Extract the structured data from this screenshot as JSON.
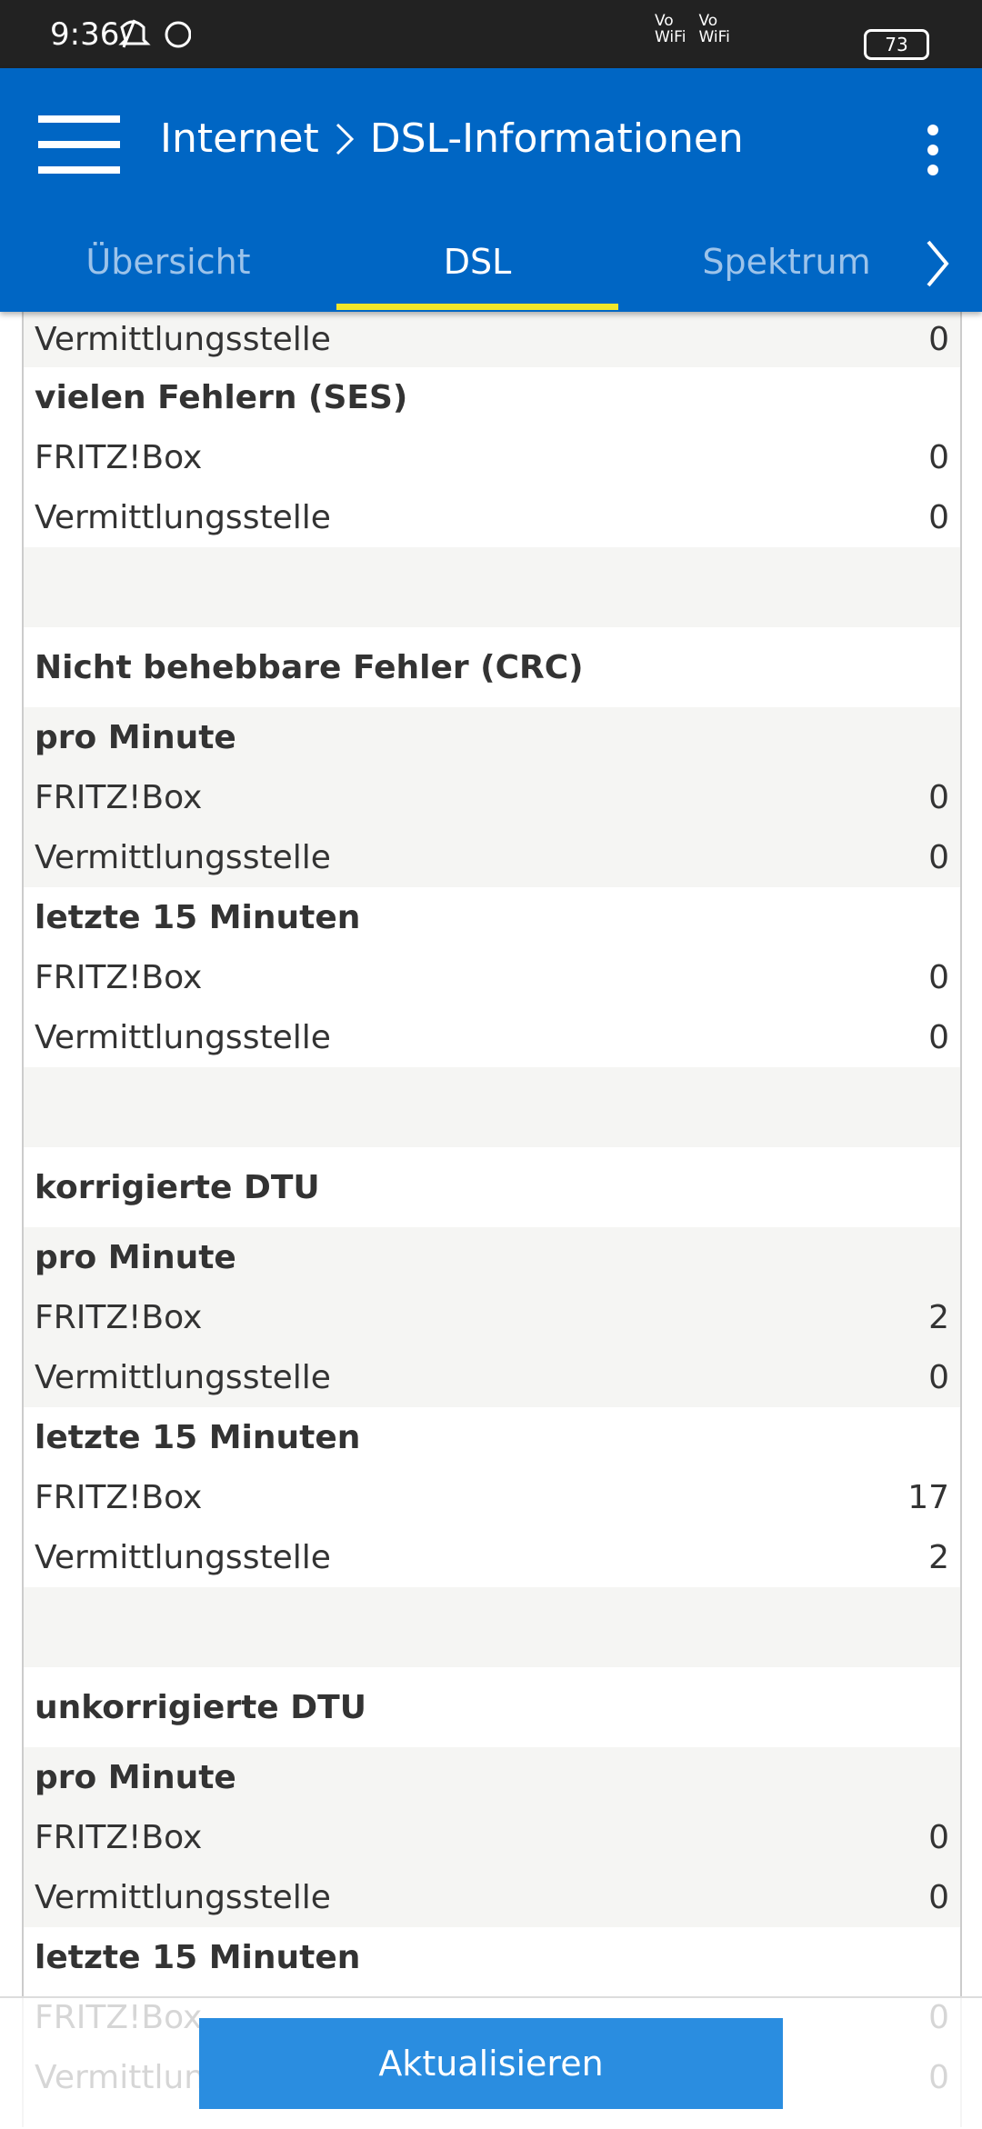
{
  "status_bar": {
    "time": "9:36",
    "battery": "73",
    "network_labels": [
      {
        "top": "Vo",
        "bottom": "WiFi"
      },
      {
        "top": "Vo",
        "bottom": "WiFi"
      }
    ]
  },
  "app_bar": {
    "breadcrumb": [
      "Internet",
      "DSL-Informationen"
    ],
    "tabs": [
      {
        "label": "Übersicht"
      },
      {
        "label": "DSL",
        "active": true
      },
      {
        "label": "Spektrum"
      }
    ]
  },
  "content": {
    "partial_row": {
      "label": "Vermittlungsstelle",
      "value": 0
    },
    "leading_group": {
      "title": "vielen Fehlern (SES)",
      "rows": [
        {
          "label": "FRITZ!Box",
          "value": 0
        },
        {
          "label": "Vermittlungsstelle",
          "value": 0
        }
      ]
    },
    "sections": [
      {
        "title": "Nicht behebbare Fehler (CRC)",
        "groups": [
          {
            "title": "pro Minute",
            "rows": [
              {
                "label": "FRITZ!Box",
                "value": 0
              },
              {
                "label": "Vermittlungsstelle",
                "value": 0
              }
            ]
          },
          {
            "title": "letzte 15 Minuten",
            "rows": [
              {
                "label": "FRITZ!Box",
                "value": 0
              },
              {
                "label": "Vermittlungsstelle",
                "value": 0
              }
            ]
          }
        ]
      },
      {
        "title": "korrigierte DTU",
        "groups": [
          {
            "title": "pro Minute",
            "rows": [
              {
                "label": "FRITZ!Box",
                "value": 2
              },
              {
                "label": "Vermittlungsstelle",
                "value": 0
              }
            ]
          },
          {
            "title": "letzte 15 Minuten",
            "rows": [
              {
                "label": "FRITZ!Box",
                "value": 17
              },
              {
                "label": "Vermittlungsstelle",
                "value": 2
              }
            ]
          }
        ]
      },
      {
        "title": "unkorrigierte DTU",
        "groups": [
          {
            "title": "pro Minute",
            "rows": [
              {
                "label": "FRITZ!Box",
                "value": 0
              },
              {
                "label": "Vermittlungsstelle",
                "value": 0
              }
            ]
          },
          {
            "title": "letzte 15 Minuten",
            "rows": [
              {
                "label": "FRITZ!Box",
                "value": 0
              },
              {
                "label": "Vermittlungsstelle",
                "value": 0
              }
            ]
          }
        ]
      }
    ]
  },
  "button": {
    "label": "Aktualisieren"
  }
}
